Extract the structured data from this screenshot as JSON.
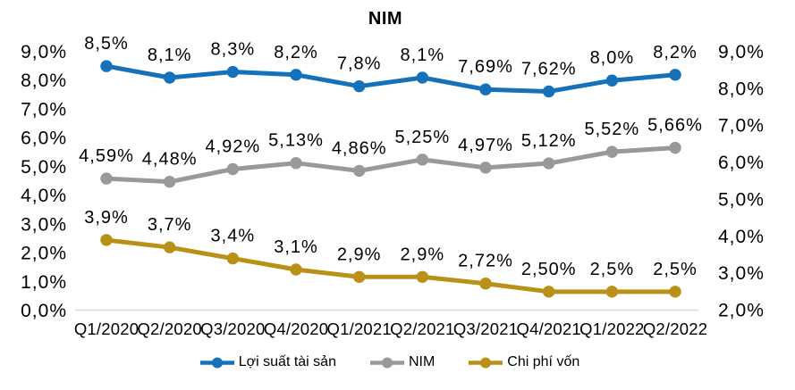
{
  "chart_data": {
    "type": "line",
    "title": "NIM",
    "categories": [
      "Q1/2020",
      "Q2/2020",
      "Q3/2020",
      "Q4/2020",
      "Q1/2021",
      "Q2/2021",
      "Q3/2021",
      "Q4/2021",
      "Q1/2022",
      "Q2/2022"
    ],
    "series": [
      {
        "name": "Lợi suất tài sản",
        "axis": "left",
        "color": "#1571BA",
        "values": [
          8.5,
          8.1,
          8.3,
          8.2,
          7.8,
          8.1,
          7.69,
          7.62,
          8.0,
          8.2
        ],
        "labels": [
          "8,5%",
          "8,1%",
          "8,3%",
          "8,2%",
          "7,8%",
          "8,1%",
          "7,69%",
          "7,62%",
          "8,0%",
          "8,2%"
        ]
      },
      {
        "name": "NIM",
        "axis": "left",
        "color": "#999999",
        "values": [
          4.59,
          4.48,
          4.92,
          5.13,
          4.86,
          5.25,
          4.97,
          5.12,
          5.52,
          5.66
        ],
        "labels": [
          "4,59%",
          "4,48%",
          "4,92%",
          "5,13%",
          "4,86%",
          "5,25%",
          "4,97%",
          "5,12%",
          "5,52%",
          "5,66%"
        ]
      },
      {
        "name": "Chi phí vốn",
        "axis": "right",
        "color": "#B89116",
        "values": [
          3.9,
          3.7,
          3.4,
          3.1,
          2.9,
          2.9,
          2.72,
          2.5,
          2.5,
          2.5
        ],
        "labels": [
          "3,9%",
          "3,7%",
          "3,4%",
          "3,1%",
          "2,9%",
          "2,9%",
          "2,72%",
          "2,50%",
          "2,5%",
          "2,5%"
        ]
      }
    ],
    "left_axis": {
      "min": 0,
      "max": 9,
      "tick_labels": [
        "0,0%",
        "1,0%",
        "2,0%",
        "3,0%",
        "4,0%",
        "5,0%",
        "6,0%",
        "7,0%",
        "8,0%",
        "9,0%"
      ]
    },
    "right_axis": {
      "min": 2,
      "max": 9,
      "tick_labels": [
        "2,0%",
        "3,0%",
        "4,0%",
        "5,0%",
        "6,0%",
        "7,0%",
        "8,0%",
        "9,0%"
      ]
    },
    "grid": false,
    "legend_position": "bottom"
  },
  "colors": {
    "axis_line": "#D9D9D9",
    "text": "#000000",
    "background": "#FFFFFF"
  }
}
